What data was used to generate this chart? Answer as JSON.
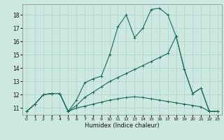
{
  "xlabel": "Humidex (Indice chaleur)",
  "background_color": "#cce8e0",
  "grid_color": "#aad4cc",
  "line_color": "#1a6b5a",
  "xlim": [
    -0.5,
    23.5
  ],
  "ylim": [
    10.5,
    18.8
  ],
  "xticks": [
    0,
    1,
    2,
    3,
    4,
    5,
    6,
    7,
    8,
    9,
    10,
    11,
    12,
    13,
    14,
    15,
    16,
    17,
    18,
    19,
    20,
    21,
    22,
    23
  ],
  "yticks": [
    11,
    12,
    13,
    14,
    15,
    16,
    17,
    18
  ],
  "line1_x": [
    0,
    1,
    2,
    3,
    4,
    5,
    6,
    7,
    8,
    9,
    10,
    11,
    12,
    13,
    14,
    15,
    16,
    17,
    18,
    19,
    20,
    21,
    22,
    23
  ],
  "line1_y": [
    10.75,
    11.3,
    12.0,
    12.1,
    12.1,
    10.75,
    11.6,
    12.9,
    13.2,
    13.4,
    15.0,
    17.1,
    18.0,
    16.3,
    17.0,
    18.4,
    18.5,
    18.0,
    16.4,
    13.9,
    12.1,
    12.5,
    10.75,
    10.75
  ],
  "line2_x": [
    0,
    1,
    2,
    3,
    4,
    5,
    6,
    7,
    8,
    9,
    10,
    11,
    12,
    13,
    14,
    15,
    16,
    17,
    18,
    19,
    20,
    21,
    22,
    23
  ],
  "line2_y": [
    10.75,
    11.3,
    12.0,
    12.1,
    12.1,
    10.75,
    11.2,
    11.8,
    12.2,
    12.6,
    13.0,
    13.3,
    13.6,
    13.9,
    14.2,
    14.5,
    14.8,
    15.1,
    16.4,
    13.9,
    12.1,
    12.5,
    10.75,
    10.75
  ],
  "line3_x": [
    0,
    1,
    2,
    3,
    4,
    5,
    6,
    7,
    8,
    9,
    10,
    11,
    12,
    13,
    14,
    15,
    16,
    17,
    18,
    19,
    20,
    21,
    22,
    23
  ],
  "line3_y": [
    10.75,
    11.3,
    12.0,
    12.1,
    12.1,
    10.75,
    11.0,
    11.15,
    11.3,
    11.45,
    11.6,
    11.7,
    11.8,
    11.85,
    11.8,
    11.7,
    11.6,
    11.5,
    11.4,
    11.3,
    11.2,
    11.1,
    10.75,
    10.75
  ]
}
